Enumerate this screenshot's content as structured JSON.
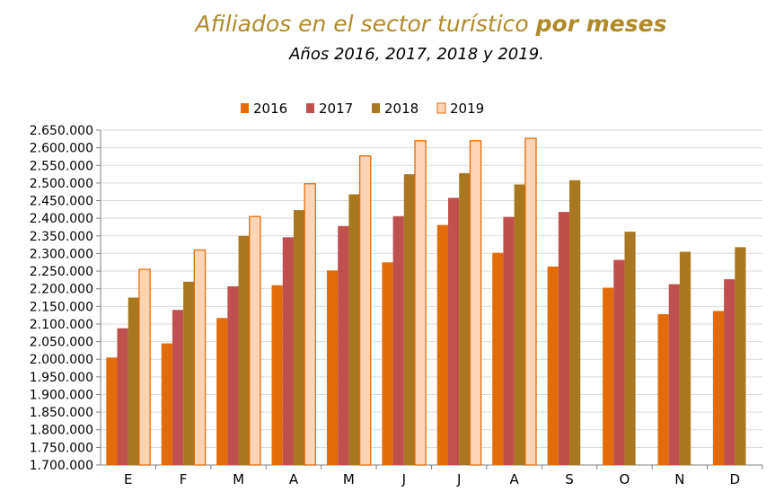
{
  "header": {
    "title_main": "Afiliados en el sector turístico ",
    "title_bold": "por meses",
    "subtitle": "Años 2016, 2017, 2018 y 2019."
  },
  "colors": {
    "s2016": "#e36c0a",
    "s2017": "#c0504d",
    "s2018": "#a8771f",
    "s2019": "#fbd5b5",
    "s2019_border": "#e36c0a",
    "title": "#b08a2a",
    "grid": "#d9d9d9"
  },
  "chart_data": {
    "type": "bar",
    "title": "Afiliados en el sector turístico por meses",
    "subtitle": "Años 2016, 2017, 2018 y 2019.",
    "categories": [
      "E",
      "F",
      "M",
      "A",
      "M",
      "J",
      "J",
      "A",
      "S",
      "O",
      "N",
      "D"
    ],
    "ylim": [
      1700000,
      2650000
    ],
    "yticks": [
      "1.700.000",
      "1.750.000",
      "1.800.000",
      "1.850.000",
      "1.900.000",
      "1.950.000",
      "2.000.000",
      "2.050.000",
      "2.100.000",
      "2.150.000",
      "2.200.000",
      "2.250.000",
      "2.300.000",
      "2.350.000",
      "2.400.000",
      "2.450.000",
      "2.500.000",
      "2.550.000",
      "2.600.000",
      "2.650.000"
    ],
    "grid": true,
    "legend": "top",
    "series": [
      {
        "name": "2016",
        "values": [
          2005000,
          2045000,
          2117000,
          2210000,
          2252000,
          2275000,
          2381000,
          2302000,
          2263000,
          2203000,
          2128000,
          2137000
        ]
      },
      {
        "name": "2017",
        "values": [
          2088000,
          2140000,
          2207000,
          2346000,
          2378000,
          2406000,
          2458000,
          2404000,
          2418000,
          2282000,
          2213000,
          2227000
        ]
      },
      {
        "name": "2018",
        "values": [
          2175000,
          2220000,
          2350000,
          2423000,
          2468000,
          2525000,
          2528000,
          2496000,
          2508000,
          2362000,
          2305000,
          2318000
        ]
      },
      {
        "name": "2019",
        "values": [
          2255000,
          2310000,
          2405000,
          2498000,
          2577000,
          2620000,
          2620000,
          2627000,
          null,
          null,
          null,
          null
        ]
      }
    ]
  }
}
